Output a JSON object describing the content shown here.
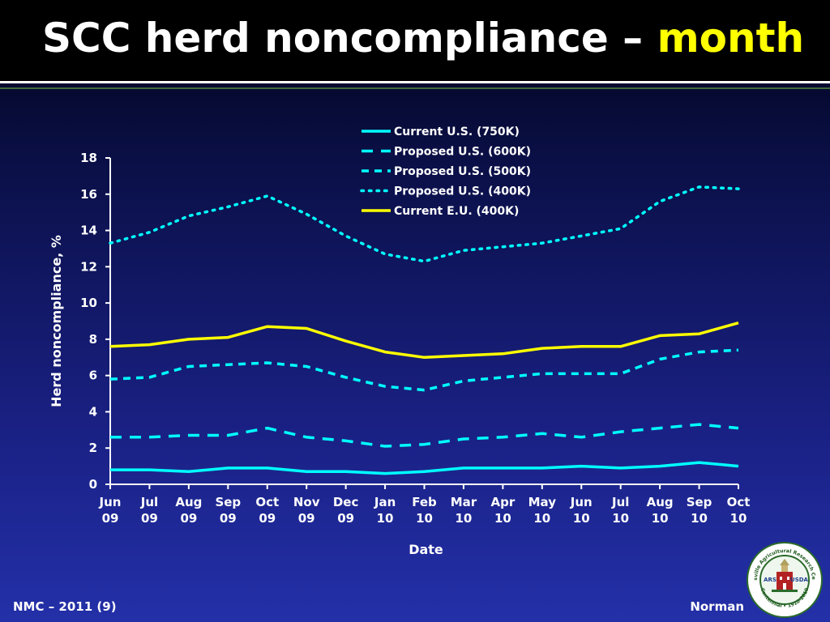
{
  "slide": {
    "title_main": "SCC herd noncompliance – ",
    "title_accent": "month",
    "footer_left": "NMC – 2011 (9)",
    "footer_right": "Norman",
    "colors": {
      "title_accent": "#ffff00",
      "cyan": "#00ffff",
      "yellow": "#ffff00"
    },
    "logo": {
      "icon": "barc-usda-seal-logo",
      "ring_text_top": "Beltsville Agricultural Research Center",
      "ring_text_bottom": "Centennial • 1910-2010",
      "center_left": "ARS",
      "center_right": "USDA"
    }
  },
  "chart_data": {
    "type": "line",
    "xlabel": "Date",
    "ylabel": "Herd noncompliance, %",
    "ylim": [
      0,
      18
    ],
    "yticks": [
      0,
      2,
      4,
      6,
      8,
      10,
      12,
      14,
      16,
      18
    ],
    "categories": [
      [
        "Jun",
        "09"
      ],
      [
        "Jul",
        "09"
      ],
      [
        "Aug",
        "09"
      ],
      [
        "Sep",
        "09"
      ],
      [
        "Oct",
        "09"
      ],
      [
        "Nov",
        "09"
      ],
      [
        "Dec",
        "09"
      ],
      [
        "Jan",
        "10"
      ],
      [
        "Feb",
        "10"
      ],
      [
        "Mar",
        "10"
      ],
      [
        "Apr",
        "10"
      ],
      [
        "May",
        "10"
      ],
      [
        "Jun",
        "10"
      ],
      [
        "Jul",
        "10"
      ],
      [
        "Aug",
        "10"
      ],
      [
        "Sep",
        "10"
      ],
      [
        "Oct",
        "10"
      ]
    ],
    "grid": false,
    "legend_position": "top-right",
    "series": [
      {
        "name": "Current U.S. (750K)",
        "color": "#00ffff",
        "style": "solid",
        "values": [
          0.8,
          0.8,
          0.7,
          0.9,
          0.9,
          0.7,
          0.7,
          0.6,
          0.7,
          0.9,
          0.9,
          0.9,
          1.0,
          0.9,
          1.0,
          1.2,
          1.0
        ]
      },
      {
        "name": "Proposed U.S. (600K)",
        "color": "#00ffff",
        "style": "long-dash",
        "values": [
          2.6,
          2.6,
          2.7,
          2.7,
          3.1,
          2.6,
          2.4,
          2.1,
          2.2,
          2.5,
          2.6,
          2.8,
          2.6,
          2.9,
          3.1,
          3.3,
          3.1
        ]
      },
      {
        "name": "Proposed U.S. (500K)",
        "color": "#00ffff",
        "style": "dash",
        "values": [
          5.8,
          5.9,
          6.5,
          6.6,
          6.7,
          6.5,
          5.9,
          5.4,
          5.2,
          5.7,
          5.9,
          6.1,
          6.1,
          6.1,
          6.9,
          7.3,
          7.4
        ]
      },
      {
        "name": "Proposed U.S. (400K)",
        "color": "#00ffff",
        "style": "dot",
        "values": [
          13.3,
          13.9,
          14.8,
          15.3,
          15.9,
          14.9,
          13.7,
          12.7,
          12.3,
          12.9,
          13.1,
          13.3,
          13.7,
          14.1,
          15.6,
          16.4,
          16.3
        ]
      },
      {
        "name": "Current E.U. (400K)",
        "color": "#ffff00",
        "style": "solid",
        "values": [
          7.6,
          7.7,
          8.0,
          8.1,
          8.7,
          8.6,
          7.9,
          7.3,
          7.0,
          7.1,
          7.2,
          7.5,
          7.6,
          7.6,
          8.2,
          8.3,
          8.9
        ]
      }
    ]
  }
}
